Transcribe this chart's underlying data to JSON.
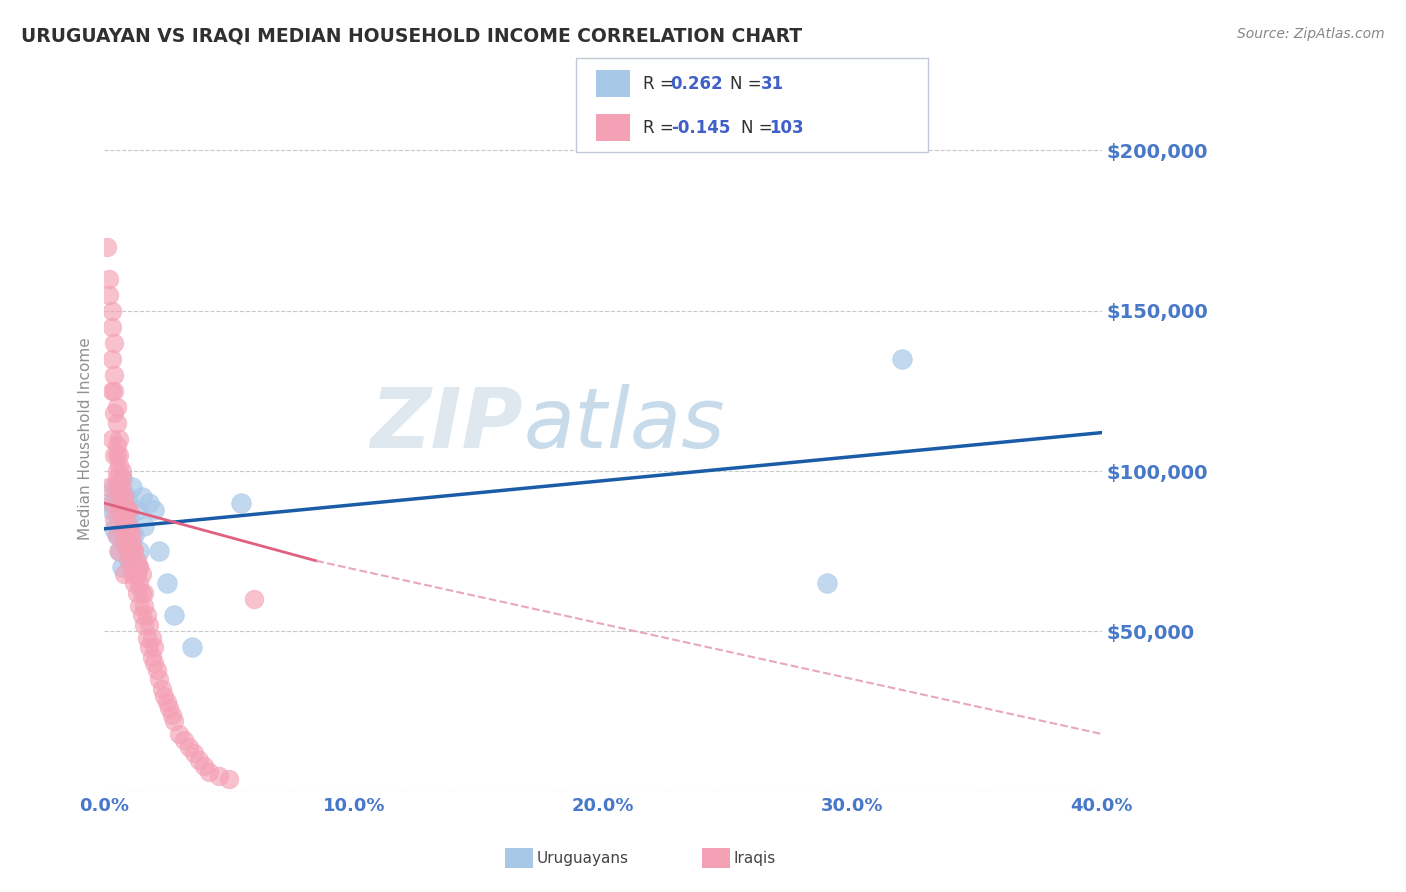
{
  "title": "URUGUAYAN VS IRAQI MEDIAN HOUSEHOLD INCOME CORRELATION CHART",
  "source_text": "Source: ZipAtlas.com",
  "watermark_part1": "ZIP",
  "watermark_part2": "atlas",
  "xlabel": "",
  "ylabel": "Median Household Income",
  "xlim": [
    0.0,
    0.4
  ],
  "ylim": [
    0,
    220000
  ],
  "yticks": [
    0,
    50000,
    100000,
    150000,
    200000
  ],
  "ytick_labels": [
    "",
    "$50,000",
    "$100,000",
    "$150,000",
    "$200,000"
  ],
  "xticks": [
    0.0,
    0.1,
    0.2,
    0.3,
    0.4
  ],
  "xtick_labels": [
    "0.0%",
    "10.0%",
    "20.0%",
    "30.0%",
    "40.0%"
  ],
  "uruguayan_R": 0.262,
  "uruguayan_N": 31,
  "iraqi_R": -0.145,
  "iraqi_N": 103,
  "uruguayan_color": "#a8c8e8",
  "iraqi_color": "#f4a0b5",
  "trend_uruguayan_color": "#1a5ca8",
  "trend_iraqi_solid_color": "#e06080",
  "trend_iraqi_dash_color": "#e8a8bc",
  "background_color": "#ffffff",
  "grid_color": "#c8c8c8",
  "title_color": "#303030",
  "tick_label_color": "#4878c8",
  "legend_R_color": "#4060c8",
  "legend_text_color": "#303030",
  "uruguayan_x": [
    0.002,
    0.003,
    0.004,
    0.004,
    0.005,
    0.005,
    0.006,
    0.006,
    0.007,
    0.007,
    0.008,
    0.008,
    0.009,
    0.009,
    0.01,
    0.01,
    0.011,
    0.012,
    0.013,
    0.014,
    0.015,
    0.016,
    0.018,
    0.02,
    0.022,
    0.025,
    0.028,
    0.035,
    0.055,
    0.29,
    0.32
  ],
  "uruguayan_y": [
    90000,
    88000,
    82000,
    95000,
    80000,
    92000,
    75000,
    85000,
    70000,
    98000,
    78000,
    88000,
    83000,
    92000,
    72000,
    86000,
    95000,
    80000,
    88000,
    75000,
    92000,
    83000,
    90000,
    88000,
    75000,
    65000,
    55000,
    45000,
    90000,
    65000,
    135000
  ],
  "iraqi_x": [
    0.001,
    0.002,
    0.002,
    0.003,
    0.003,
    0.003,
    0.003,
    0.004,
    0.004,
    0.004,
    0.004,
    0.005,
    0.005,
    0.005,
    0.005,
    0.005,
    0.006,
    0.006,
    0.006,
    0.006,
    0.006,
    0.007,
    0.007,
    0.007,
    0.007,
    0.007,
    0.008,
    0.008,
    0.008,
    0.008,
    0.009,
    0.009,
    0.009,
    0.009,
    0.01,
    0.01,
    0.01,
    0.01,
    0.01,
    0.011,
    0.011,
    0.011,
    0.011,
    0.012,
    0.012,
    0.012,
    0.012,
    0.013,
    0.013,
    0.013,
    0.014,
    0.014,
    0.014,
    0.015,
    0.015,
    0.015,
    0.016,
    0.016,
    0.017,
    0.017,
    0.018,
    0.018,
    0.019,
    0.019,
    0.02,
    0.02,
    0.021,
    0.022,
    0.023,
    0.024,
    0.025,
    0.026,
    0.027,
    0.028,
    0.03,
    0.032,
    0.034,
    0.036,
    0.038,
    0.04,
    0.042,
    0.046,
    0.05,
    0.005,
    0.006,
    0.007,
    0.008,
    0.009,
    0.01,
    0.011,
    0.012,
    0.014,
    0.016,
    0.002,
    0.003,
    0.004,
    0.005,
    0.006,
    0.008,
    0.003,
    0.004,
    0.005,
    0.06
  ],
  "iraqi_y": [
    170000,
    155000,
    160000,
    125000,
    145000,
    135000,
    150000,
    118000,
    130000,
    140000,
    125000,
    95000,
    105000,
    115000,
    120000,
    100000,
    88000,
    95000,
    105000,
    110000,
    90000,
    82000,
    90000,
    95000,
    100000,
    85000,
    78000,
    85000,
    92000,
    88000,
    75000,
    82000,
    88000,
    80000,
    72000,
    78000,
    82000,
    88000,
    75000,
    68000,
    75000,
    80000,
    72000,
    65000,
    70000,
    75000,
    68000,
    62000,
    68000,
    72000,
    58000,
    65000,
    70000,
    55000,
    62000,
    68000,
    52000,
    58000,
    48000,
    55000,
    45000,
    52000,
    42000,
    48000,
    40000,
    45000,
    38000,
    35000,
    32000,
    30000,
    28000,
    26000,
    24000,
    22000,
    18000,
    16000,
    14000,
    12000,
    10000,
    8000,
    6000,
    5000,
    4000,
    108000,
    102000,
    98000,
    92000,
    88000,
    83000,
    78000,
    75000,
    70000,
    62000,
    95000,
    90000,
    85000,
    80000,
    75000,
    68000,
    110000,
    105000,
    98000,
    60000
  ],
  "trend_uru_x0": 0.0,
  "trend_uru_x1": 0.4,
  "trend_uru_y0": 82000,
  "trend_uru_y1": 112000,
  "trend_irq_solid_x0": 0.0,
  "trend_irq_solid_x1": 0.085,
  "trend_irq_solid_y0": 90000,
  "trend_irq_solid_y1": 72000,
  "trend_irq_dash_x0": 0.085,
  "trend_irq_dash_x1": 0.4,
  "trend_irq_dash_y0": 72000,
  "trend_irq_dash_y1": 18000
}
